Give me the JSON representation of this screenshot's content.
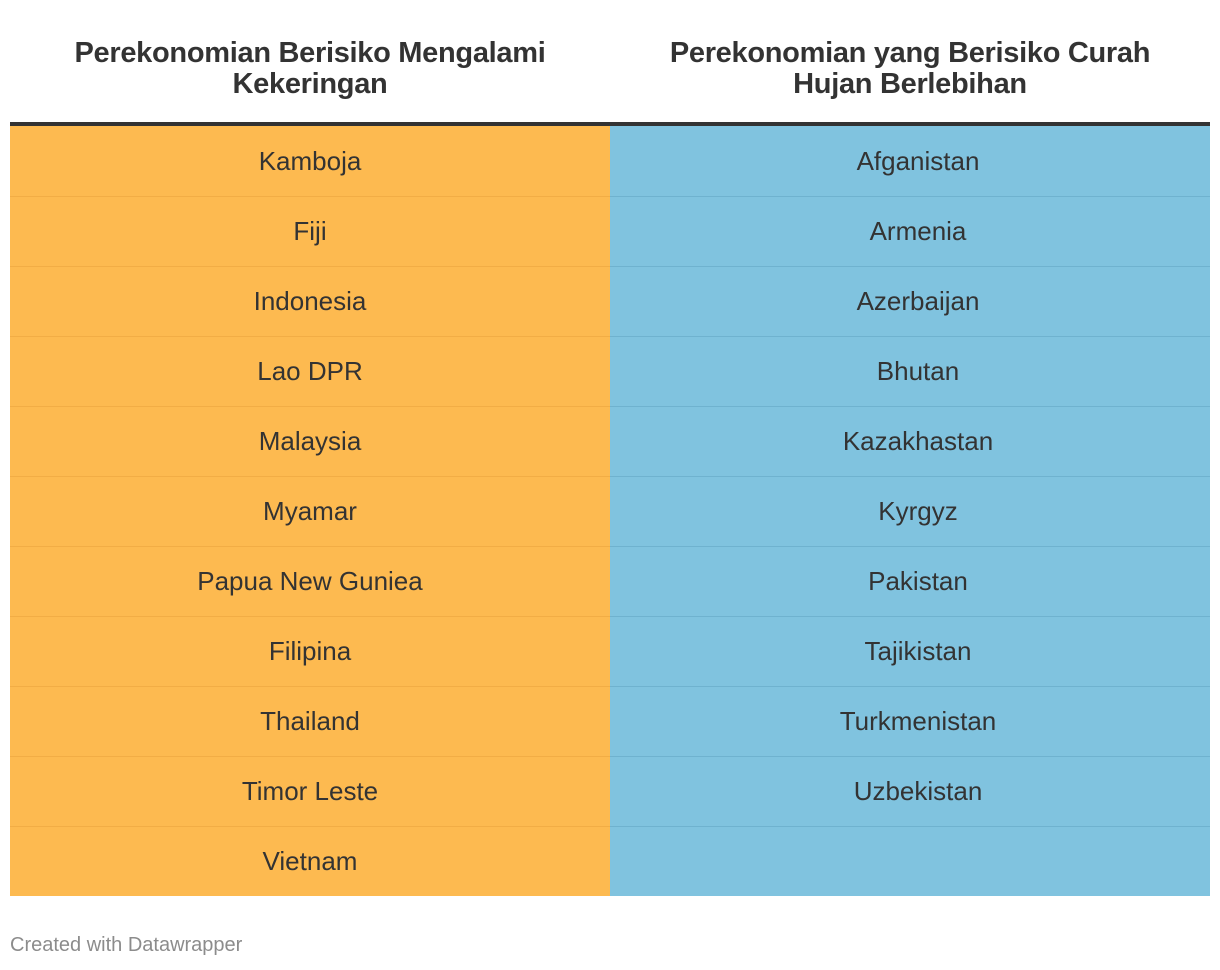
{
  "chart_data": {
    "type": "table",
    "columns": [
      {
        "header": "Perekonomian Berisiko Mengalami Kekeringan",
        "color": "#fdba50",
        "rows": [
          "Kamboja",
          "Fiji",
          "Indonesia",
          "Lao DPR",
          "Malaysia",
          "Myamar",
          "Papua New Guniea",
          "Filipina",
          "Thailand",
          "Timor Leste",
          "Vietnam"
        ]
      },
      {
        "header": "Perekonomian yang Berisiko Curah Hujan Berlebihan",
        "color": "#80c3df",
        "rows": [
          "Afganistan",
          "Armenia",
          "Azerbaijan",
          "Bhutan",
          "Kazakhastan",
          "Kyrgyz",
          "Pakistan",
          "Tajikistan",
          "Turkmenistan",
          "Uzbekistan",
          ""
        ]
      }
    ]
  },
  "footer": {
    "credit": "Created with Datawrapper"
  }
}
